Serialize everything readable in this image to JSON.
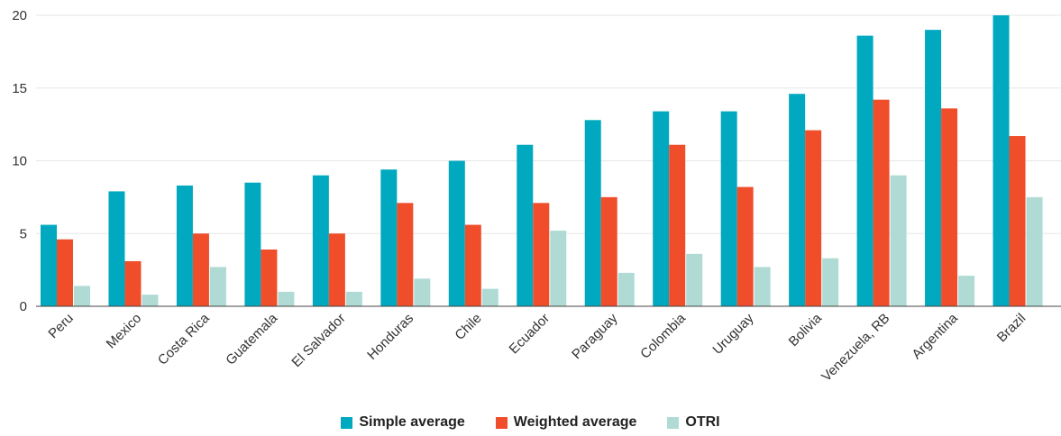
{
  "chart_data": {
    "type": "bar",
    "categories": [
      "Peru",
      "Mexico",
      "Costa Rica",
      "Guatemala",
      "El Salvador",
      "Honduras",
      "Chile",
      "Ecuador",
      "Paraguay",
      "Colombia",
      "Uruguay",
      "Bolivia",
      "Venezuela, RB",
      "Argentina",
      "Brazil"
    ],
    "series": [
      {
        "name": "Simple average",
        "color": "#00a9bf",
        "values": [
          5.6,
          7.9,
          8.3,
          8.5,
          9.0,
          9.4,
          10.0,
          11.1,
          12.8,
          13.4,
          13.4,
          14.6,
          18.6,
          19.0,
          20.0
        ]
      },
      {
        "name": "Weighted average",
        "color": "#f04d2a",
        "values": [
          4.6,
          3.1,
          5.0,
          3.9,
          5.0,
          7.1,
          5.6,
          7.1,
          7.5,
          11.1,
          8.2,
          12.1,
          14.2,
          13.6,
          11.7
        ]
      },
      {
        "name": "OTRI",
        "color": "#b0dbd5",
        "values": [
          1.4,
          0.8,
          2.7,
          1.0,
          1.0,
          1.9,
          1.2,
          5.2,
          2.3,
          3.6,
          2.7,
          3.3,
          9.0,
          2.1,
          7.5
        ]
      }
    ],
    "yticks": [
      "0",
      "5",
      "10",
      "15",
      "20"
    ],
    "ylim": [
      0,
      20
    ],
    "grid": true,
    "legend": "bottom-center",
    "title": "",
    "xlabel": "",
    "ylabel": ""
  }
}
